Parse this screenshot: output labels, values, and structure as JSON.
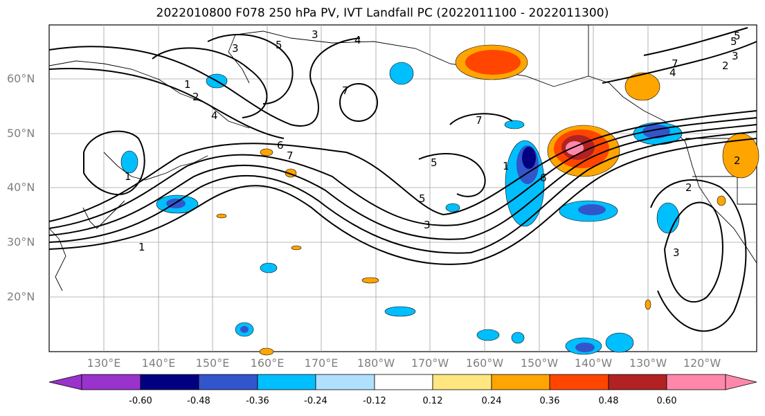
{
  "title": "2022010800 F078 250 hPa PV, IVT Landfall PC (2022011100 - 2022011300)",
  "lat_labels": [
    "60°N",
    "50°N",
    "40°N",
    "30°N",
    "20°N"
  ],
  "lon_labels": [
    "130°E",
    "140°E",
    "150°E",
    "160°E",
    "170°E",
    "180°W",
    "170°W",
    "160°W",
    "150°W",
    "140°W",
    "130°W",
    "120°W"
  ],
  "colorbar": {
    "tick_labels": [
      "-0.60",
      "-0.48",
      "-0.36",
      "-0.24",
      "-0.12",
      "0.12",
      "0.24",
      "0.36",
      "0.48",
      "0.60"
    ],
    "colors": [
      "#9933cc",
      "#000080",
      "#3355cc",
      "#00bfff",
      "#b0e0ff",
      "#ffffff",
      "#ffe680",
      "#ffa500",
      "#ff4500",
      "#b22222",
      "#ff88aa"
    ]
  },
  "contour_labels": [
    "1",
    "2",
    "3",
    "4",
    "5",
    "6",
    "7",
    "1",
    "2",
    "3",
    "4",
    "5",
    "7",
    "5",
    "3",
    "5",
    "6",
    "7",
    "1",
    "2",
    "3",
    "4",
    "5",
    "2",
    "3",
    "1",
    "7"
  ]
}
